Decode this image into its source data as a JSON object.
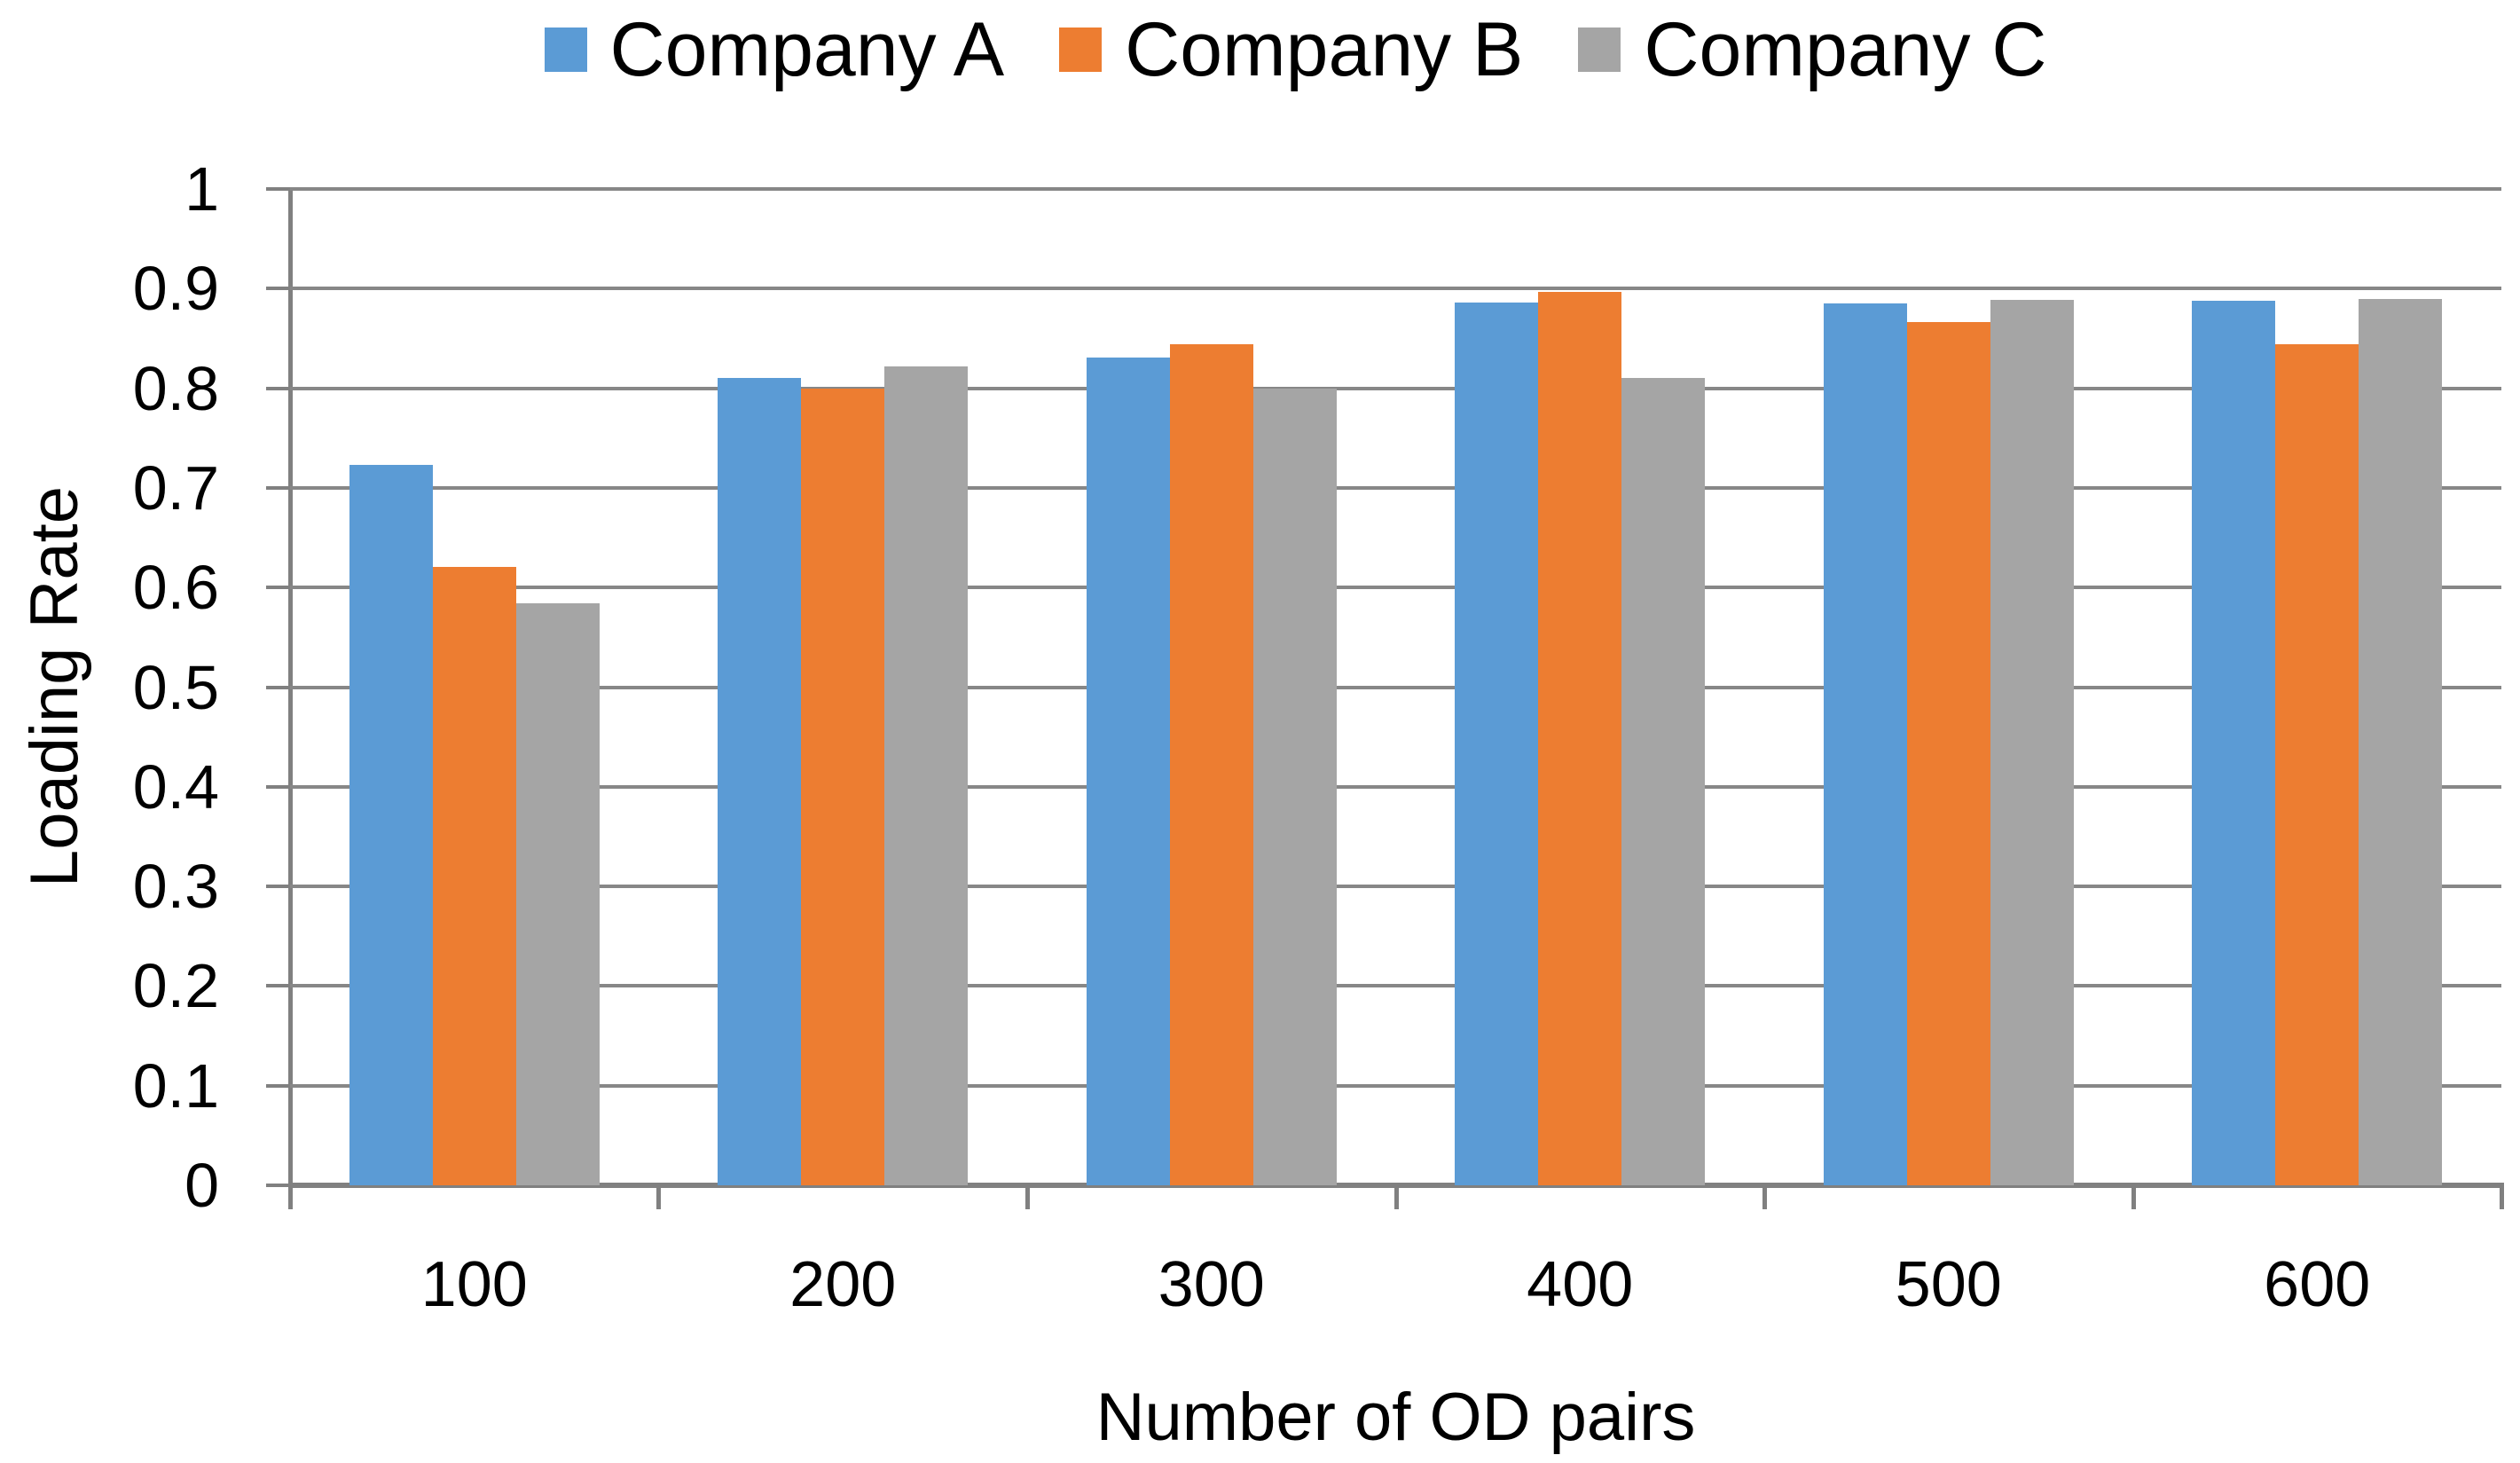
{
  "chart_data": {
    "type": "bar",
    "title": "",
    "xlabel": "Number of OD pairs",
    "ylabel": "Loading Rate",
    "categories": [
      "100",
      "200",
      "300",
      "400",
      "500",
      "600"
    ],
    "series": [
      {
        "name": "Company A",
        "color": "#5B9BD5",
        "values": [
          0.723,
          0.81,
          0.831,
          0.886,
          0.885,
          0.888
        ]
      },
      {
        "name": "Company B",
        "color": "#ED7D31",
        "values": [
          0.621,
          0.8,
          0.844,
          0.897,
          0.866,
          0.844
        ]
      },
      {
        "name": "Company C",
        "color": "#A5A5A5",
        "values": [
          0.584,
          0.822,
          0.8,
          0.81,
          0.889,
          0.89
        ]
      }
    ],
    "ylim": [
      0,
      1
    ],
    "ytick_step": 0.1,
    "ytick_labels": [
      "0",
      "0.1",
      "0.2",
      "0.3",
      "0.4",
      "0.5",
      "0.6",
      "0.7",
      "0.8",
      "0.9",
      "1"
    ],
    "legend_position": "top",
    "grid": "horizontal",
    "axis_color": "#808080",
    "gridline_color": "#878787",
    "bar_width_ratio": 0.2263
  }
}
